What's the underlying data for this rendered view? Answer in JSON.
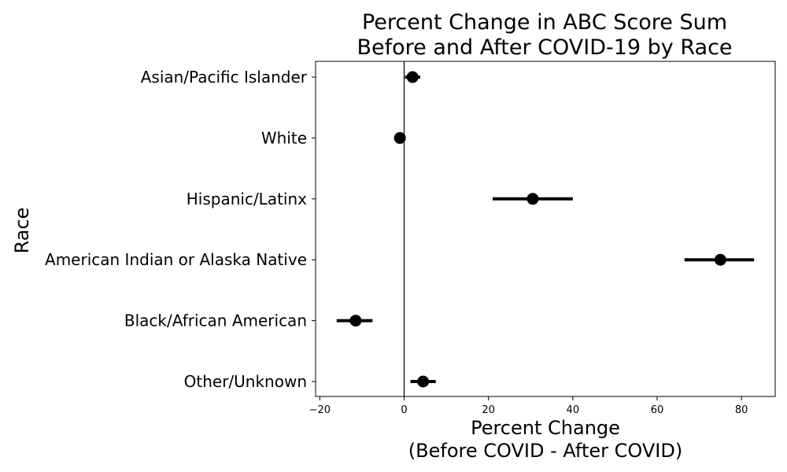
{
  "chart_data": {
    "type": "scatter",
    "title": [
      "Percent Change in ABC Score Sum",
      "Before and After COVID-19 by Race"
    ],
    "xlabel": [
      "Percent Change",
      "(Before COVID - After COVID)"
    ],
    "ylabel": "Race",
    "xlim": [
      -21,
      88
    ],
    "xticks": [
      -20,
      0,
      20,
      40,
      60,
      80
    ],
    "xtick_labels": [
      "−20",
      "0",
      "20",
      "40",
      "60",
      "80"
    ],
    "reference_line_x": 0,
    "grid": false,
    "legend": "none",
    "marker_color": "#000000",
    "categories": [
      "Asian/Pacific Islander",
      "White",
      "Hispanic/Latinx",
      "American Indian or Alaska Native",
      "Black/African American",
      "Other/Unknown"
    ],
    "points": [
      {
        "category": "Asian/Pacific Islander",
        "value": 2.0,
        "ci_low": 0.2,
        "ci_high": 3.8
      },
      {
        "category": "White",
        "value": -1.0,
        "ci_low": -1.3,
        "ci_high": -0.7
      },
      {
        "category": "Hispanic/Latinx",
        "value": 30.5,
        "ci_low": 21.0,
        "ci_high": 40.0
      },
      {
        "category": "American Indian or Alaska Native",
        "value": 75.0,
        "ci_low": 66.5,
        "ci_high": 83.0
      },
      {
        "category": "Black/African American",
        "value": -11.5,
        "ci_low": -16.0,
        "ci_high": -7.5
      },
      {
        "category": "Other/Unknown",
        "value": 4.5,
        "ci_low": 1.5,
        "ci_high": 7.5
      }
    ]
  }
}
